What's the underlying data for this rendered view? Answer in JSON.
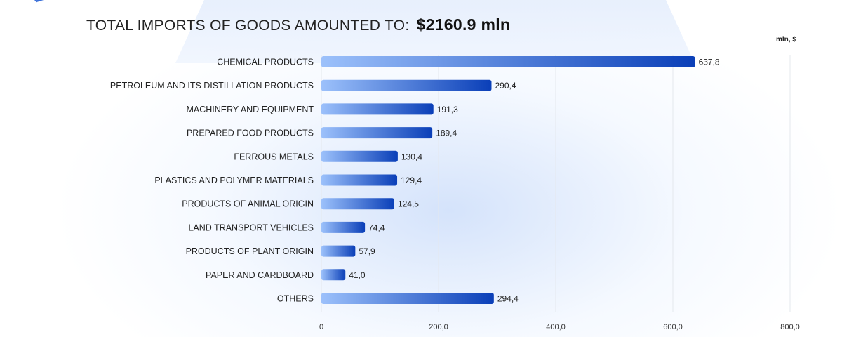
{
  "header": {
    "title_prefix": "TOTAL IMPORTS OF GOODS AMOUNTED TO:",
    "title_value": "$2160.9 mln"
  },
  "chart_data": {
    "type": "bar",
    "orientation": "horizontal",
    "title": "TOTAL IMPORTS OF GOODS AMOUNTED TO: $2160.9 mln",
    "unit_label": "mln, $",
    "categories": [
      "CHEMICAL PRODUCTS",
      "PETROLEUM AND ITS DISTILLATION PRODUCTS",
      "MACHINERY AND EQUIPMENT",
      "PREPARED FOOD PRODUCTS",
      "FERROUS METALS",
      "PLASTICS AND POLYMER MATERIALS",
      "PRODUCTS OF ANIMAL ORIGIN",
      "LAND TRANSPORT VEHICLES",
      "PRODUCTS OF PLANT ORIGIN",
      "PAPER AND CARDBOARD",
      "OTHERS"
    ],
    "values": [
      637.8,
      290.4,
      191.3,
      189.4,
      130.4,
      129.4,
      124.5,
      74.4,
      57.9,
      41.0,
      294.4
    ],
    "value_labels": [
      "637,8",
      "290,4",
      "191,3",
      "189,4",
      "130,4",
      "129,4",
      "124,5",
      "74,4",
      "57,9",
      "41,0",
      "294,4"
    ],
    "xlim": [
      0,
      800
    ],
    "x_ticks": [
      0,
      200,
      400,
      600,
      800
    ],
    "x_tick_labels": [
      "0",
      "200,0",
      "400,0",
      "600,0",
      "800,0"
    ],
    "grid": true,
    "colors": {
      "bar_start": "#9cc1fb",
      "bar_end": "#0a3fb8",
      "grid": "#e4e8ee",
      "text": "#222222"
    }
  }
}
